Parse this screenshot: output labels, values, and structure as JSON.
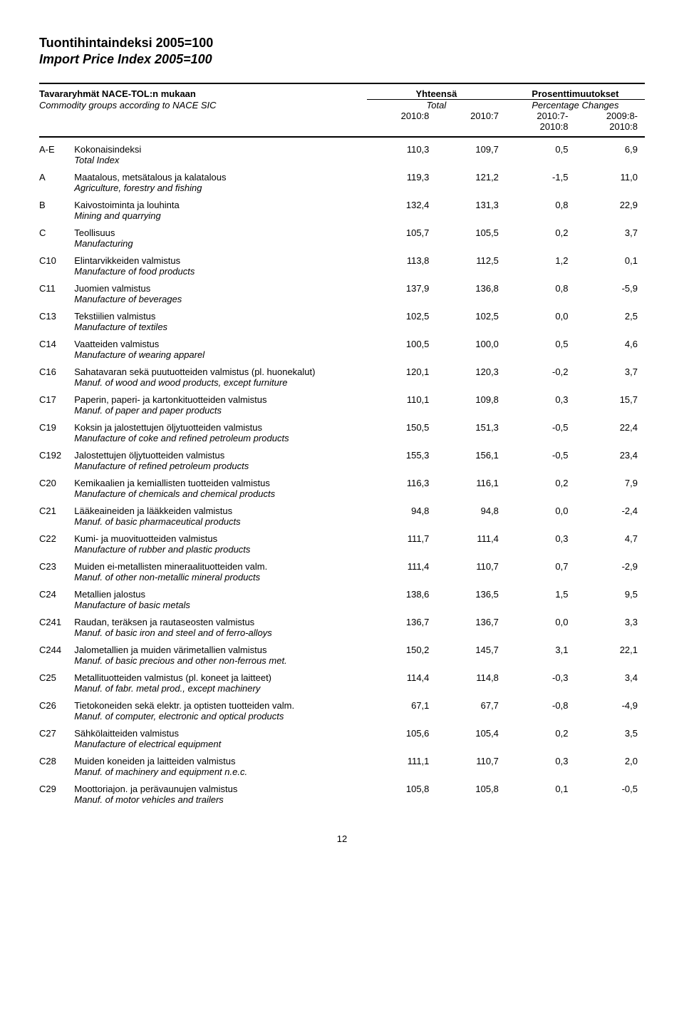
{
  "title_fi": "Tuontihintaindeksi 2005=100",
  "title_en": "Import Price Index 2005=100",
  "header": {
    "group_label_fi": "Tavararyhmät NACE-TOL:n mukaan",
    "group_label_en": "Commodity groups according to NACE SIC",
    "total_fi": "Yhteensä",
    "total_en": "Total",
    "pct_fi": "Prosenttimuutokset",
    "pct_en": "Percentage Changes",
    "c1": "2010:8",
    "c2": "2010:7",
    "c3a": "2010:7-",
    "c3b": "2010:8",
    "c4a": "2009:8-",
    "c4b": "2010:8"
  },
  "rows": [
    {
      "code": "A-E",
      "fi": "Kokonaisindeksi",
      "en": "Total Index",
      "v": [
        "110,3",
        "109,7",
        "0,5",
        "6,9"
      ]
    },
    {
      "code": "A",
      "fi": "Maatalous, metsätalous ja kalatalous",
      "en": "Agriculture, forestry and fishing",
      "v": [
        "119,3",
        "121,2",
        "-1,5",
        "11,0"
      ]
    },
    {
      "code": "B",
      "fi": "Kaivostoiminta ja louhinta",
      "en": "Mining and quarrying",
      "v": [
        "132,4",
        "131,3",
        "0,8",
        "22,9"
      ]
    },
    {
      "code": "C",
      "fi": "Teollisuus",
      "en": "Manufacturing",
      "v": [
        "105,7",
        "105,5",
        "0,2",
        "3,7"
      ]
    },
    {
      "code": "C10",
      "fi": "Elintarvikkeiden valmistus",
      "en": "Manufacture of food products",
      "v": [
        "113,8",
        "112,5",
        "1,2",
        "0,1"
      ]
    },
    {
      "code": "C11",
      "fi": "Juomien valmistus",
      "en": "Manufacture of beverages",
      "v": [
        "137,9",
        "136,8",
        "0,8",
        "-5,9"
      ]
    },
    {
      "code": "C13",
      "fi": "Tekstiilien valmistus",
      "en": "Manufacture of textiles",
      "v": [
        "102,5",
        "102,5",
        "0,0",
        "2,5"
      ]
    },
    {
      "code": "C14",
      "fi": "Vaatteiden valmistus",
      "en": "Manufacture of wearing apparel",
      "v": [
        "100,5",
        "100,0",
        "0,5",
        "4,6"
      ]
    },
    {
      "code": "C16",
      "fi": "Sahatavaran sekä puutuotteiden valmistus (pl. huonekalut)",
      "en": "Manuf. of wood and wood products, except furniture",
      "v": [
        "120,1",
        "120,3",
        "-0,2",
        "3,7"
      ]
    },
    {
      "code": "C17",
      "fi": "Paperin, paperi- ja kartonkituotteiden valmistus",
      "en": "Manuf. of paper and paper products",
      "v": [
        "110,1",
        "109,8",
        "0,3",
        "15,7"
      ]
    },
    {
      "code": "C19",
      "fi": "Koksin ja jalostettujen öljytuotteiden valmistus",
      "en": "Manufacture of coke and refined petroleum products",
      "v": [
        "150,5",
        "151,3",
        "-0,5",
        "22,4"
      ]
    },
    {
      "code": "C192",
      "fi": "Jalostettujen öljytuotteiden valmistus",
      "en": "Manufacture of refined petroleum products",
      "v": [
        "155,3",
        "156,1",
        "-0,5",
        "23,4"
      ]
    },
    {
      "code": "C20",
      "fi": "Kemikaalien ja kemiallisten tuotteiden valmistus",
      "en": "Manufacture of chemicals and chemical products",
      "v": [
        "116,3",
        "116,1",
        "0,2",
        "7,9"
      ]
    },
    {
      "code": "C21",
      "fi": "Lääkeaineiden ja lääkkeiden valmistus",
      "en": "Manuf. of basic pharmaceutical products",
      "v": [
        "94,8",
        "94,8",
        "0,0",
        "-2,4"
      ]
    },
    {
      "code": "C22",
      "fi": "Kumi- ja muovituotteiden valmistus",
      "en": "Manufacture of rubber and plastic products",
      "v": [
        "111,7",
        "111,4",
        "0,3",
        "4,7"
      ]
    },
    {
      "code": "C23",
      "fi": "Muiden ei-metallisten mineraalituotteiden valm.",
      "en": "Manuf. of other non-metallic mineral products",
      "v": [
        "111,4",
        "110,7",
        "0,7",
        "-2,9"
      ]
    },
    {
      "code": "C24",
      "fi": "Metallien jalostus",
      "en": "Manufacture of basic metals",
      "v": [
        "138,6",
        "136,5",
        "1,5",
        "9,5"
      ]
    },
    {
      "code": "C241",
      "fi": "Raudan, teräksen ja rautaseosten valmistus",
      "en": "Manuf. of basic iron and steel and of ferro-alloys",
      "v": [
        "136,7",
        "136,7",
        "0,0",
        "3,3"
      ]
    },
    {
      "code": "C244",
      "fi": "Jalometallien ja muiden värimetallien valmistus",
      "en": "Manuf. of basic precious and other non-ferrous met.",
      "v": [
        "150,2",
        "145,7",
        "3,1",
        "22,1"
      ]
    },
    {
      "code": "C25",
      "fi": "Metallituotteiden valmistus (pl. koneet ja laitteet)",
      "en": "Manuf. of fabr. metal prod., except machinery",
      "v": [
        "114,4",
        "114,8",
        "-0,3",
        "3,4"
      ]
    },
    {
      "code": "C26",
      "fi": "Tietokoneiden sekä elektr. ja optisten tuotteiden valm.",
      "en": "Manuf. of computer, electronic and optical products",
      "v": [
        "67,1",
        "67,7",
        "-0,8",
        "-4,9"
      ]
    },
    {
      "code": "C27",
      "fi": "Sähkölaitteiden valmistus",
      "en": "Manufacture of electrical equipment",
      "v": [
        "105,6",
        "105,4",
        "0,2",
        "3,5"
      ]
    },
    {
      "code": "C28",
      "fi": "Muiden koneiden ja laitteiden valmistus",
      "en": "Manuf. of machinery and equipment n.e.c.",
      "v": [
        "111,1",
        "110,7",
        "0,3",
        "2,0"
      ]
    },
    {
      "code": "C29",
      "fi": "Moottoriajon. ja perävaunujen valmistus",
      "en": "Manuf. of motor vehicles and trailers",
      "v": [
        "105,8",
        "105,8",
        "0,1",
        "-0,5"
      ]
    }
  ],
  "page_number": "12"
}
